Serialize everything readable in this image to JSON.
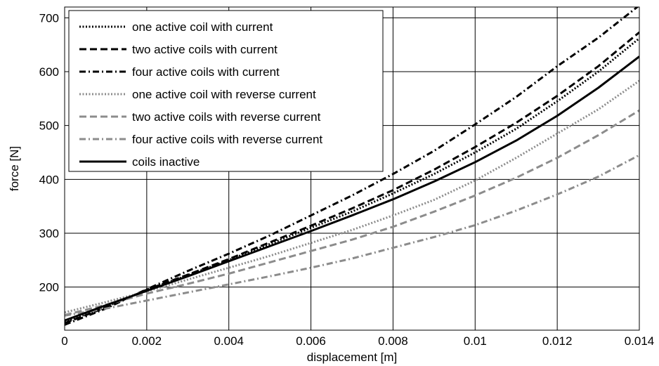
{
  "chart_data": {
    "type": "line",
    "title": "",
    "xlabel": "displacement [m]",
    "ylabel": "force [N]",
    "xlim": [
      0,
      0.014
    ],
    "ylim": [
      120,
      720
    ],
    "xticks": [
      0,
      0.002,
      0.004,
      0.006,
      0.008,
      0.01,
      0.012,
      0.014
    ],
    "xtick_labels": [
      "0",
      "0.002",
      "0.004",
      "0.006",
      "0.008",
      "0.01",
      "0.012",
      "0.014"
    ],
    "yticks": [
      200,
      300,
      400,
      500,
      600,
      700
    ],
    "ytick_labels": [
      "200",
      "300",
      "400",
      "500",
      "600",
      "700"
    ],
    "grid": true,
    "legend_position": "top-left",
    "series": [
      {
        "name": "one active coil with current",
        "color": "#000000",
        "dash": "dotted",
        "x": [
          0,
          0.001,
          0.002,
          0.003,
          0.004,
          0.005,
          0.006,
          0.007,
          0.008,
          0.009,
          0.01,
          0.011,
          0.012,
          0.013,
          0.014
        ],
        "y": [
          135,
          163,
          195,
          222,
          250,
          280,
          310,
          340,
          374,
          410,
          450,
          494,
          545,
          600,
          662
        ]
      },
      {
        "name": "two active coils with current",
        "color": "#000000",
        "dash": "dashed",
        "x": [
          0,
          0.001,
          0.002,
          0.003,
          0.004,
          0.005,
          0.006,
          0.007,
          0.008,
          0.009,
          0.01,
          0.011,
          0.012,
          0.013,
          0.014
        ],
        "y": [
          133,
          162,
          195,
          223,
          252,
          283,
          314,
          346,
          380,
          418,
          460,
          505,
          555,
          610,
          673
        ]
      },
      {
        "name": "four active coils with current",
        "color": "#000000",
        "dash": "dashdot",
        "x": [
          0,
          0.001,
          0.002,
          0.003,
          0.004,
          0.005,
          0.006,
          0.007,
          0.008,
          0.009,
          0.01,
          0.011,
          0.012,
          0.013,
          0.014
        ],
        "y": [
          130,
          160,
          196,
          230,
          262,
          296,
          333,
          370,
          410,
          453,
          502,
          553,
          610,
          663,
          723
        ]
      },
      {
        "name": "one active coil with reverse current",
        "color": "#8c8c8c",
        "dash": "dotted",
        "x": [
          0,
          0.001,
          0.002,
          0.003,
          0.004,
          0.005,
          0.006,
          0.007,
          0.008,
          0.009,
          0.01,
          0.011,
          0.012,
          0.013,
          0.014
        ],
        "y": [
          153,
          172,
          192,
          214,
          236,
          258,
          282,
          306,
          333,
          362,
          398,
          440,
          485,
          530,
          583
        ]
      },
      {
        "name": "two active coils with reverse current",
        "color": "#8c8c8c",
        "dash": "dashed",
        "x": [
          0,
          0.001,
          0.002,
          0.003,
          0.004,
          0.005,
          0.006,
          0.007,
          0.008,
          0.009,
          0.01,
          0.011,
          0.012,
          0.013,
          0.014
        ],
        "y": [
          148,
          167,
          188,
          206,
          225,
          246,
          267,
          288,
          312,
          340,
          370,
          403,
          440,
          482,
          528
        ]
      },
      {
        "name": "four active coils with reverse current",
        "color": "#8c8c8c",
        "dash": "dashdot",
        "x": [
          0,
          0.001,
          0.002,
          0.003,
          0.004,
          0.005,
          0.006,
          0.007,
          0.008,
          0.009,
          0.01,
          0.011,
          0.012,
          0.013,
          0.014
        ],
        "y": [
          147,
          160,
          175,
          190,
          205,
          220,
          236,
          253,
          273,
          293,
          315,
          342,
          372,
          405,
          445
        ]
      },
      {
        "name": "coils inactive",
        "color": "#000000",
        "dash": "solid",
        "x": [
          0,
          0.001,
          0.002,
          0.003,
          0.004,
          0.005,
          0.006,
          0.007,
          0.008,
          0.009,
          0.01,
          0.011,
          0.012,
          0.013,
          0.014
        ],
        "y": [
          138,
          166,
          193,
          220,
          248,
          276,
          304,
          333,
          363,
          396,
          432,
          472,
          518,
          570,
          628
        ]
      }
    ]
  }
}
